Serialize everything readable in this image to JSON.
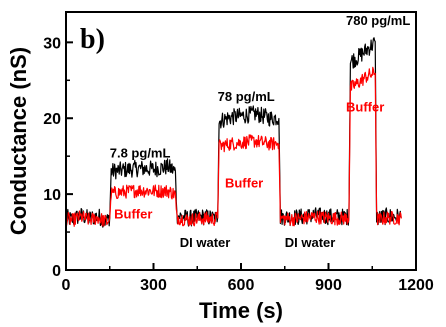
{
  "chart_data": {
    "type": "line",
    "panel_label": "b)",
    "xlabel": "Time (s)",
    "ylabel": "Conductance (nS)",
    "xlim": [
      0,
      1200
    ],
    "ylim": [
      0,
      34
    ],
    "xticks": [
      0,
      300,
      600,
      900,
      1200
    ],
    "yticks": [
      0,
      10,
      20,
      30
    ],
    "grid": false,
    "legend": "none",
    "colors": {
      "black_series": "#000000",
      "red_series": "#ff0000"
    },
    "annotations": [
      {
        "text": "7.8 pg/mL",
        "x": 150,
        "y": 14.8,
        "color": "#000000"
      },
      {
        "text": "78 pg/mL",
        "x": 520,
        "y": 22.3,
        "color": "#000000"
      },
      {
        "text": "780 pg/mL",
        "x": 960,
        "y": 32.3,
        "color": "#000000"
      },
      {
        "text": "Buffer",
        "x": 165,
        "y": 6.8,
        "color": "#ff0000"
      },
      {
        "text": "Buffer",
        "x": 545,
        "y": 10.9,
        "color": "#ff0000"
      },
      {
        "text": "Buffer",
        "x": 960,
        "y": 20.9,
        "color": "#ff0000"
      },
      {
        "text": "DI water",
        "x": 390,
        "y": 3.0,
        "color": "#000000"
      },
      {
        "text": "DI water",
        "x": 750,
        "y": 3.0,
        "color": "#000000"
      }
    ],
    "series": [
      {
        "color": "#000000",
        "x": [
          0,
          20,
          50,
          80,
          110,
          140,
          150,
          155,
          200,
          250,
          300,
          350,
          375,
          380,
          420,
          470,
          510,
          520,
          525,
          560,
          600,
          650,
          700,
          730,
          735,
          780,
          850,
          920,
          960,
          970,
          975,
          1000,
          1030,
          1060,
          1065,
          1070,
          1100,
          1150
        ],
        "y": [
          7.0,
          6.6,
          7.2,
          6.8,
          7.1,
          6.4,
          7.0,
          13.0,
          13.2,
          13.4,
          13.3,
          13.6,
          13.0,
          7.2,
          6.8,
          7.0,
          6.8,
          7.0,
          19.6,
          20.1,
          20.3,
          20.6,
          20.0,
          20.1,
          7.0,
          6.9,
          7.2,
          7.0,
          7.0,
          7.0,
          27.5,
          28.0,
          29.0,
          30.0,
          7.2,
          6.8,
          7.1,
          7.0
        ]
      },
      {
        "color": "#ff0000",
        "x": [
          0,
          20,
          50,
          80,
          110,
          140,
          150,
          155,
          200,
          250,
          300,
          350,
          375,
          380,
          420,
          470,
          510,
          520,
          525,
          560,
          600,
          650,
          700,
          730,
          735,
          780,
          850,
          920,
          960,
          970,
          975,
          1000,
          1030,
          1060,
          1065,
          1070,
          1100,
          1150
        ],
        "y": [
          6.8,
          6.5,
          7.0,
          6.6,
          6.9,
          6.3,
          6.8,
          10.1,
          10.3,
          10.5,
          10.4,
          10.4,
          10.0,
          6.9,
          6.6,
          6.8,
          6.7,
          6.9,
          16.3,
          16.6,
          16.8,
          17.0,
          16.6,
          16.7,
          6.8,
          6.7,
          7.0,
          6.8,
          6.8,
          6.8,
          24.0,
          24.6,
          25.5,
          26.0,
          7.0,
          6.6,
          6.9,
          6.8
        ]
      }
    ]
  }
}
